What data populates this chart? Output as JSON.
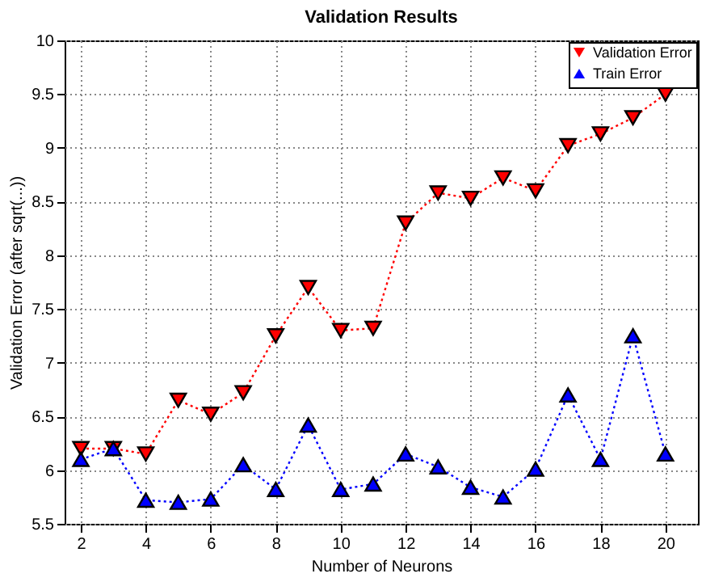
{
  "chart_data": {
    "type": "line",
    "title": "Validation Results",
    "xlabel": "Number of Neurons",
    "ylabel": "Validation Error (after sqrt(...))",
    "x": [
      2,
      3,
      4,
      5,
      6,
      7,
      8,
      9,
      10,
      11,
      12,
      13,
      14,
      15,
      16,
      17,
      18,
      19,
      20
    ],
    "series": [
      {
        "name": "Validation Error",
        "color": "#ff0000",
        "marker": "triangle-down",
        "values": [
          6.2,
          6.2,
          6.15,
          6.65,
          6.52,
          6.72,
          7.25,
          7.7,
          7.3,
          7.32,
          8.3,
          8.58,
          8.53,
          8.72,
          8.6,
          9.02,
          9.13,
          9.28,
          9.5
        ]
      },
      {
        "name": "Train Error",
        "color": "#0000ff",
        "marker": "triangle",
        "values": [
          6.1,
          6.2,
          5.72,
          5.7,
          5.73,
          6.05,
          5.82,
          6.42,
          5.82,
          5.87,
          6.15,
          6.03,
          5.84,
          5.75,
          6.01,
          6.7,
          6.1,
          7.25,
          6.15
        ]
      }
    ],
    "xlim": [
      1.5,
      21
    ],
    "xticks": [
      2,
      4,
      6,
      8,
      10,
      12,
      14,
      16,
      18,
      20
    ],
    "ylim": [
      5.5,
      10
    ],
    "yticks": [
      5.5,
      6,
      6.5,
      7,
      7.5,
      8,
      8.5,
      9,
      9.5,
      10
    ],
    "grid": true,
    "legend": "top right",
    "line_style": "dotted"
  }
}
